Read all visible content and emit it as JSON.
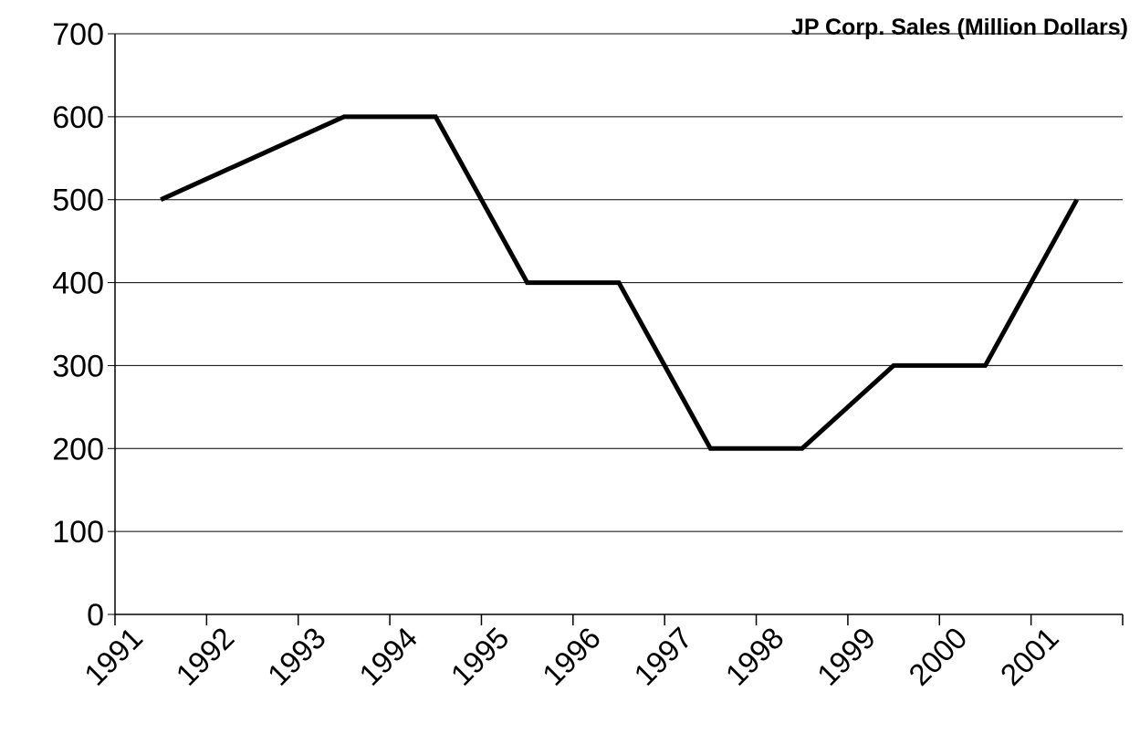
{
  "chart_data": {
    "type": "line",
    "title": "JP Corp. Sales (Million Dollars)",
    "categories": [
      "1991",
      "1992",
      "1993",
      "1994",
      "1995",
      "1996",
      "1997",
      "1998",
      "1999",
      "2000",
      "2001"
    ],
    "series": [
      {
        "name": "Sales",
        "color": "#000000",
        "values": [
          500,
          550,
          600,
          600,
          400,
          400,
          200,
          200,
          300,
          300,
          500
        ]
      }
    ],
    "ylim": [
      0,
      700
    ],
    "yticks": [
      0,
      100,
      200,
      300,
      400,
      500,
      600,
      700
    ],
    "grid": true
  }
}
